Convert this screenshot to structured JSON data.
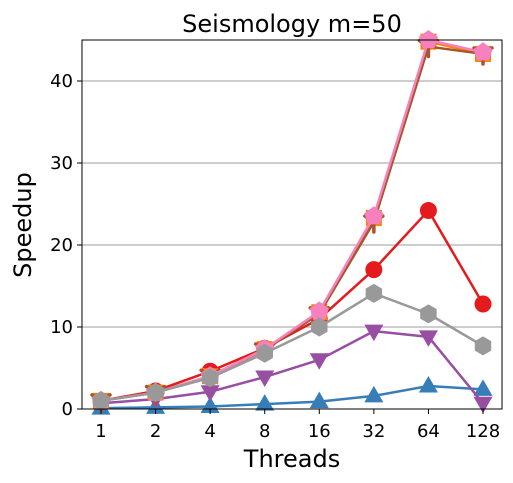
{
  "chart_data": {
    "type": "line",
    "title": "Seismology m=50",
    "xlabel": "Threads",
    "ylabel": "Speedup",
    "x": [
      "1",
      "2",
      "4",
      "8",
      "16",
      "32",
      "64",
      "128"
    ],
    "ylim": [
      0,
      45
    ],
    "yticks": [
      0,
      10,
      20,
      30,
      40
    ],
    "grid": "horizontal",
    "series": [
      {
        "color": "#e41a1c",
        "marker": "circle",
        "values": [
          1.0,
          2.2,
          4.6,
          7.4,
          11.0,
          17.0,
          24.2,
          12.8
        ]
      },
      {
        "color": "#377eb8",
        "marker": "triangle-up",
        "values": [
          0.1,
          0.2,
          0.3,
          0.6,
          0.9,
          1.6,
          2.8,
          2.4
        ]
      },
      {
        "color": "#984ea3",
        "marker": "triangle-down",
        "values": [
          0.7,
          1.2,
          2.1,
          3.9,
          6.0,
          9.5,
          8.8,
          0.7
        ]
      },
      {
        "color": "#ff7f00",
        "marker": "square",
        "values": [
          1.0,
          2.0,
          4.0,
          7.3,
          11.8,
          23.3,
          44.8,
          43.3
        ]
      },
      {
        "color": "#a65628",
        "marker": "tri-down",
        "values": [
          1.0,
          2.0,
          4.0,
          7.2,
          11.6,
          22.8,
          44.2,
          43.3
        ]
      },
      {
        "color": "#f781bf",
        "marker": "pentagon",
        "values": [
          1.0,
          2.0,
          4.0,
          7.3,
          11.9,
          23.5,
          45.0,
          43.5
        ]
      },
      {
        "color": "#999999",
        "marker": "hexagon",
        "values": [
          1.0,
          2.0,
          3.8,
          6.8,
          10.0,
          14.1,
          11.6,
          7.7
        ]
      }
    ]
  }
}
